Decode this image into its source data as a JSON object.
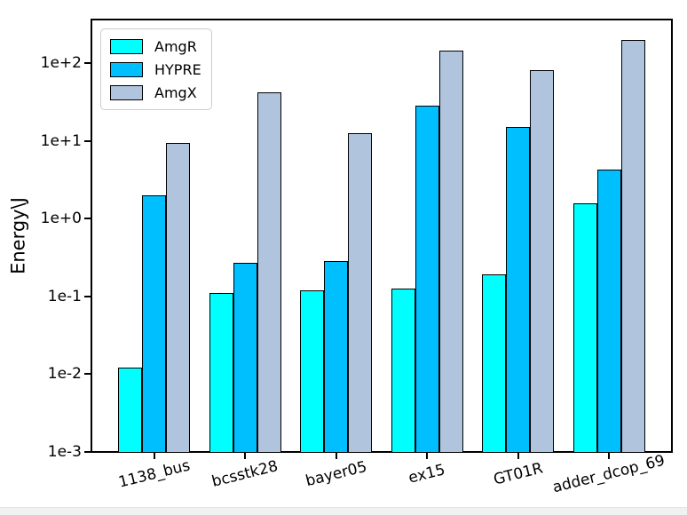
{
  "figure": {
    "background": "#ffffff",
    "bar_edge_color": "#000000",
    "spine_color": "#000000",
    "bottom_strip_color": "#f0f1f3"
  },
  "chart_data": {
    "type": "bar",
    "title": "",
    "xlabel": "",
    "ylabel": "Energy\\J",
    "yscale": "log",
    "ylim": [
      0.001,
      360
    ],
    "grid": false,
    "legend_position": "upper left",
    "yticks": [
      "1e-3",
      "1e-2",
      "1e-1",
      "1e+0",
      "1e+1",
      "1e+2"
    ],
    "categories": [
      "1138_bus",
      "bcsstk28",
      "bayer05",
      "ex15",
      "GT01R",
      "adder_dcop_69"
    ],
    "series": [
      {
        "name": "AmgR",
        "color": "#00FFFF",
        "values": [
          0.012,
          0.11,
          0.12,
          0.125,
          0.19,
          1.55
        ]
      },
      {
        "name": "HYPRE",
        "color": "#00BFFF",
        "values": [
          2.0,
          0.27,
          0.28,
          28,
          15,
          4.2
        ]
      },
      {
        "name": "AmgX",
        "color": "#B0C4DE",
        "values": [
          9.4,
          42,
          12.5,
          145,
          82,
          200
        ]
      }
    ]
  }
}
